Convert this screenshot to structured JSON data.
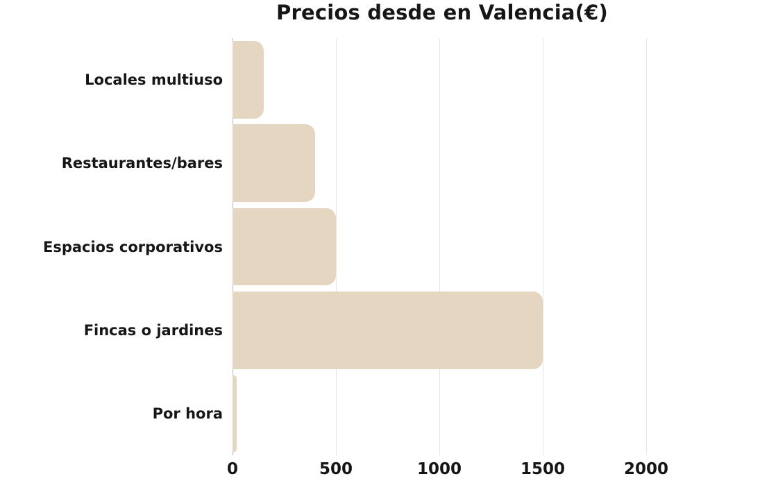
{
  "chart_data": {
    "type": "bar",
    "orientation": "horizontal",
    "title": "Precios desde en Valencia(€)",
    "categories": [
      "Locales multiuso",
      "Restaurantes/bares",
      "Espacios corporativos",
      "Fincas o jardines",
      "Por hora"
    ],
    "values": [
      150,
      400,
      500,
      1500,
      20
    ],
    "xlabel": "",
    "ylabel": "",
    "x_ticks": [
      0,
      500,
      1000,
      1500,
      2000
    ],
    "xlim": [
      0,
      2500
    ],
    "grid": true,
    "legend_position": "none",
    "colors": {
      "bar": "#e5d6c2",
      "gridline": "#e6e6e6",
      "axis_line": "#b9b9b9",
      "text": "#161616",
      "background": "#ffffff"
    }
  }
}
